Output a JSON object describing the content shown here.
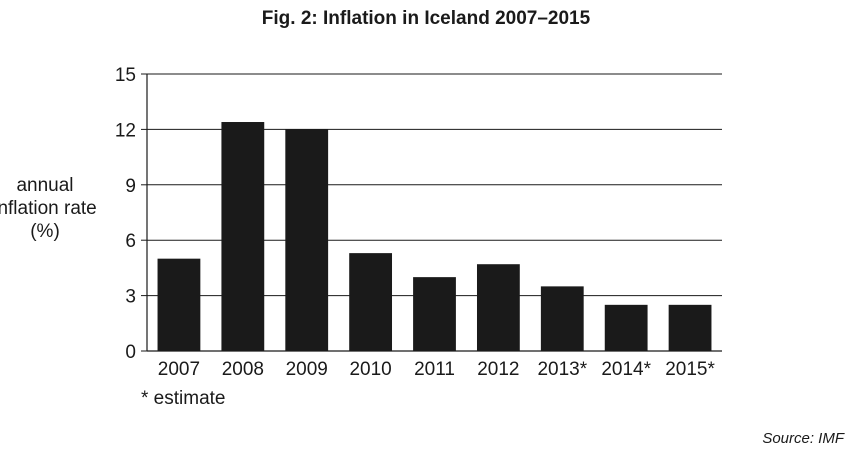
{
  "chart_data": {
    "type": "bar",
    "title": "Fig. 2: Inflation in Iceland 2007–2015",
    "ylabel_lines": [
      "annual",
      "inflation rate",
      "(%)"
    ],
    "categories": [
      "2007",
      "2008",
      "2009",
      "2010",
      "2011",
      "2012",
      "2013*",
      "2014*",
      "2015*"
    ],
    "values": [
      5.0,
      12.4,
      12.0,
      5.3,
      4.0,
      4.7,
      3.5,
      2.5,
      2.5
    ],
    "ylim": [
      0,
      15
    ],
    "yticks": [
      "0",
      "3",
      "6",
      "9",
      "12",
      "15"
    ],
    "grid": true,
    "bar_color": "#1a1a1a",
    "footnote": "* estimate",
    "source": "Source: IMF"
  }
}
